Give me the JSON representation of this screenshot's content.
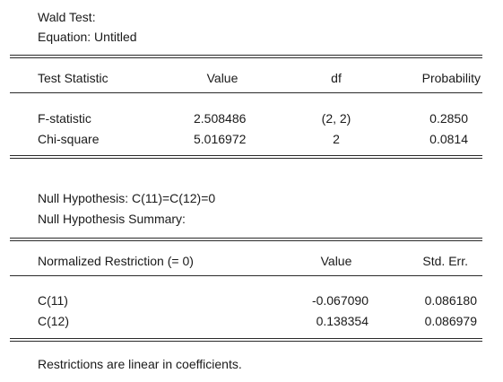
{
  "header": {
    "title": "Wald Test:",
    "equation": "Equation: Untitled"
  },
  "stats_table": {
    "columns": [
      "Test Statistic",
      "Value",
      "df",
      "Probability"
    ],
    "rows": [
      {
        "name": "F-statistic",
        "value": "2.508486",
        "df": "(2, 2)",
        "probability": "0.2850"
      },
      {
        "name": "Chi-square",
        "value": "5.016972",
        "df": "2",
        "probability": "0.0814"
      }
    ]
  },
  "hypothesis": {
    "null": "Null Hypothesis: C(11)=C(12)=0",
    "summary_label": "Null Hypothesis Summary:"
  },
  "restriction_table": {
    "columns": [
      "Normalized Restriction (= 0)",
      "Value",
      "Std. Err."
    ],
    "rows": [
      {
        "name": "C(11)",
        "value": "-0.067090",
        "stderr": "0.086180"
      },
      {
        "name": "C(12)",
        "value": "0.138354",
        "stderr": "0.086979"
      }
    ]
  },
  "footer": {
    "note": "Restrictions are linear in coefficients."
  }
}
